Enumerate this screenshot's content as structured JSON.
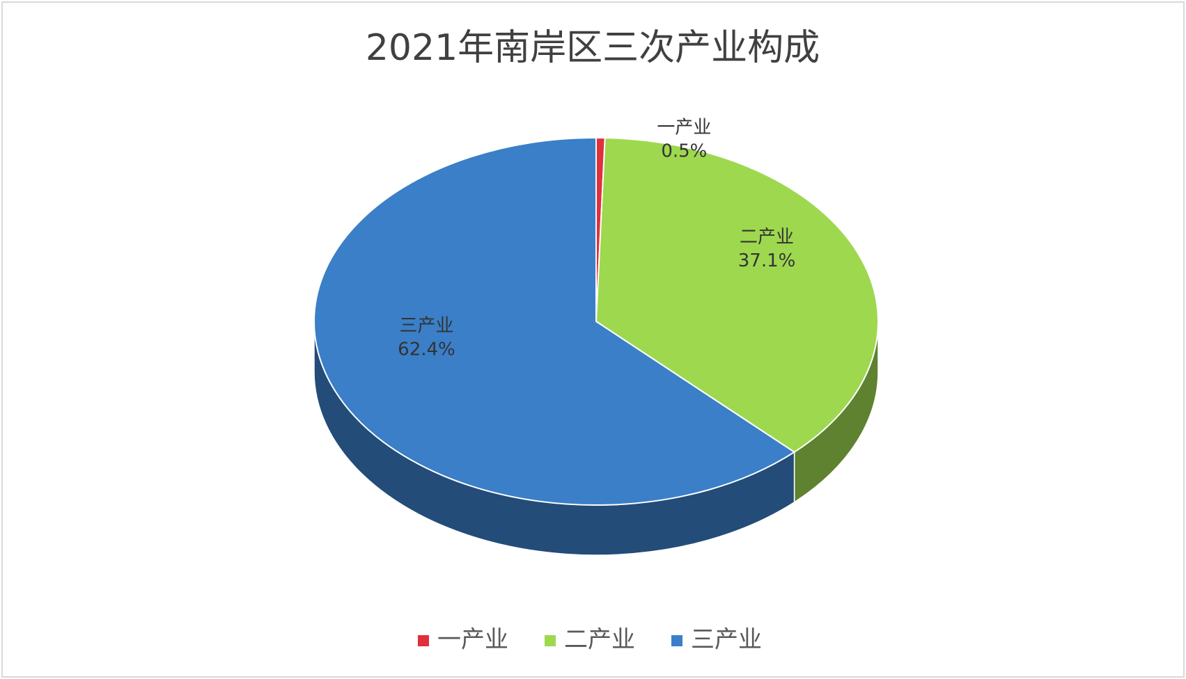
{
  "chart_data": {
    "type": "pie",
    "title": "2021年南岸区三次产业构成",
    "categories": [
      "一产业",
      "二产业",
      "三产业"
    ],
    "values": [
      0.5,
      37.1,
      62.4
    ],
    "value_labels": [
      "0.5%",
      "37.1%",
      "62.4%"
    ],
    "colors": [
      "#e0303c",
      "#9dd84f",
      "#3a7fc8"
    ],
    "legend": "bottom"
  }
}
